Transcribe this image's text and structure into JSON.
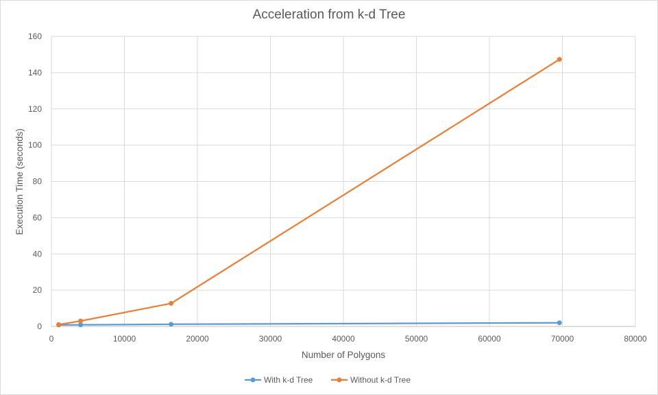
{
  "chart_data": {
    "type": "line",
    "title": "Acceleration from k-d Tree",
    "xlabel": "Number of Polygons",
    "ylabel": "Execution Time (seconds)",
    "xlim": [
      0,
      80000
    ],
    "ylim": [
      0,
      160
    ],
    "x_ticks": [
      0,
      10000,
      20000,
      30000,
      40000,
      50000,
      60000,
      70000,
      80000
    ],
    "y_ticks": [
      0,
      20,
      40,
      60,
      80,
      100,
      120,
      140,
      160
    ],
    "grid": true,
    "legend_position": "bottom",
    "series": [
      {
        "name": "With k-d Tree",
        "color": "#5b9bd5",
        "x": [
          1000,
          4000,
          16400,
          69600
        ],
        "y": [
          0.8,
          0.9,
          1.2,
          2.0
        ]
      },
      {
        "name": "Without k-d Tree",
        "color": "#ed7d31",
        "x": [
          1000,
          4000,
          16400,
          69600
        ],
        "y": [
          1.0,
          3.0,
          12.7,
          147.3
        ]
      }
    ]
  }
}
